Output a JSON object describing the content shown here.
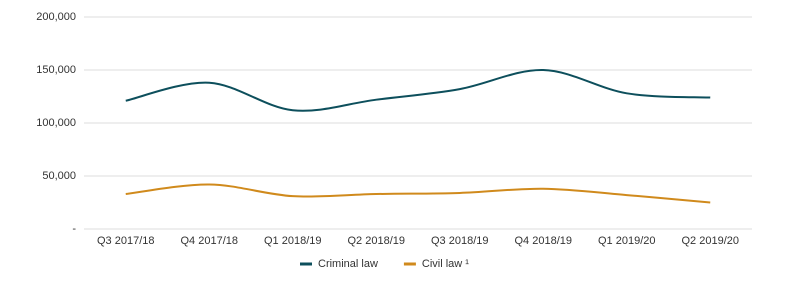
{
  "chart_data": {
    "type": "line",
    "categories": [
      "Q3 2017/18",
      "Q4 2017/18",
      "Q1 2018/19",
      "Q2 2018/19",
      "Q3 2018/19",
      "Q4 2018/19",
      "Q1 2019/20",
      "Q2 2019/20"
    ],
    "series": [
      {
        "name": "Criminal law",
        "color": "#0d4f5c",
        "values": [
          121000,
          138000,
          112000,
          122000,
          132000,
          150000,
          128000,
          124000
        ]
      },
      {
        "name": "Civil law ¹",
        "color": "#d08a1c",
        "values": [
          33000,
          42000,
          31000,
          33000,
          34000,
          38000,
          32000,
          25000
        ]
      }
    ],
    "ylim": [
      0,
      200000
    ],
    "yticks": [
      {
        "value": 0,
        "label": "-"
      },
      {
        "value": 50000,
        "label": "50,000"
      },
      {
        "value": 100000,
        "label": "100,000"
      },
      {
        "value": 150000,
        "label": "150,000"
      },
      {
        "value": 200000,
        "label": "200,000"
      }
    ],
    "grid": true,
    "legend": "bottom"
  }
}
